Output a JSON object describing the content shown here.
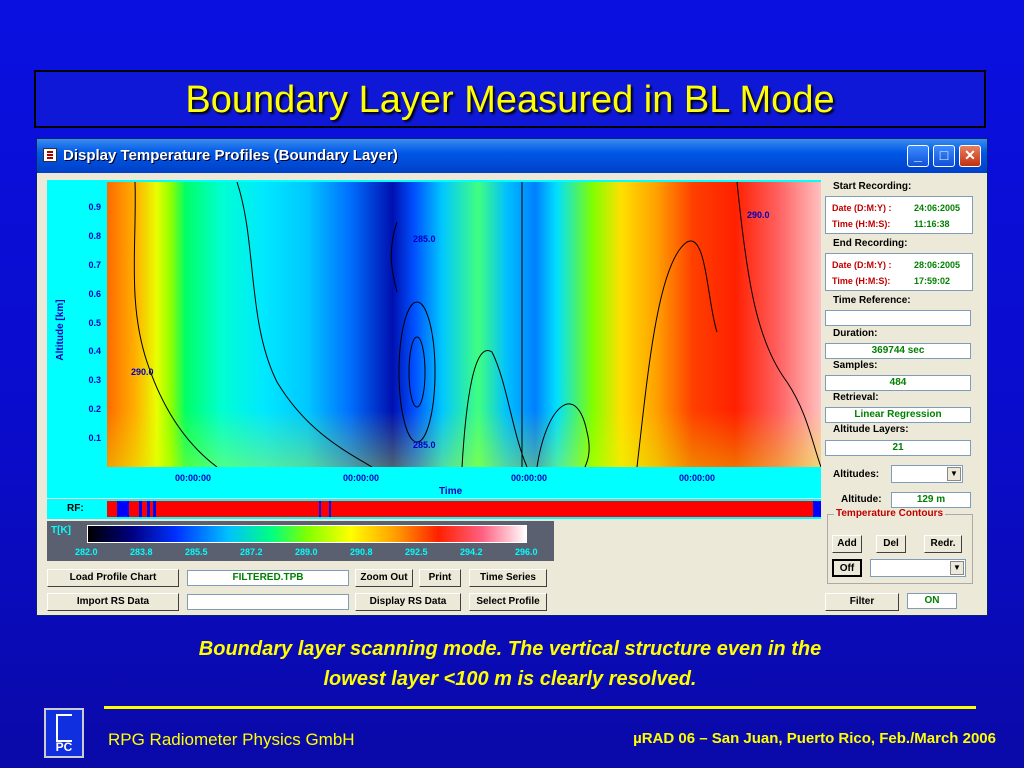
{
  "slide": {
    "title": "Boundary Layer Measured in BL Mode",
    "caption_line1": "Boundary layer scanning mode. The vertical structure even in the",
    "caption_line2": "lowest layer <100 m is clearly resolved.",
    "footer_left": "RPG Radiometer Physics GmbH",
    "footer_right": "µRAD 06  – San Juan, Puerto Rico,  Feb./March  2006",
    "logo_text": "PC"
  },
  "window": {
    "title": "Display Temperature Profiles (Boundary Layer)",
    "min_label": "_",
    "max_label": "□",
    "close_label": "✕"
  },
  "plot": {
    "ylabel": "Altitude [km]",
    "yticks": [
      "0.9",
      "0.8",
      "0.7",
      "0.6",
      "0.5",
      "0.4",
      "0.3",
      "0.2",
      "0.1"
    ],
    "xticks": [
      "00:00:00",
      "00:00:00",
      "00:00:00",
      "00:00:00"
    ],
    "xlabel": "Time",
    "contour_labels": [
      "285.0",
      "290.0",
      "285.0",
      "290.0"
    ],
    "rf_label": "RF:"
  },
  "legend": {
    "title": "T[K]",
    "ticks": [
      "282.0",
      "283.8",
      "285.5",
      "287.2",
      "289.0",
      "290.8",
      "292.5",
      "294.2",
      "296.0"
    ]
  },
  "controls": {
    "load_profile_chart": "Load Profile Chart",
    "filename": "FILTERED.TPB",
    "zoom_out": "Zoom Out",
    "print": "Print",
    "time_series": "Time Series",
    "import_rs_data": "Import RS Data",
    "rs_field": "",
    "display_rs_data": "Display RS Data",
    "select_profile": "Select Profile"
  },
  "sidebar": {
    "start_recording": "Start Recording:",
    "start_date_key": "Date (D:M:Y) :",
    "start_date_val": "24:06:2005",
    "start_time_key": "Time (H:M:S):",
    "start_time_val": "11:16:38",
    "end_recording": "End Recording:",
    "end_date_key": "Date (D:M:Y) :",
    "end_date_val": "28:06:2005",
    "end_time_key": "Time (H:M:S):",
    "end_time_val": "17:59:02",
    "time_reference": "Time Reference:",
    "time_reference_val": "",
    "duration": "Duration:",
    "duration_val": "369744 sec",
    "samples": "Samples:",
    "samples_val": "484",
    "retrieval": "Retrieval:",
    "retrieval_val": "Linear Regression",
    "altitude_layers": "Altitude Layers:",
    "altitude_layers_val": "21",
    "altitudes": "Altitudes:",
    "altitude": "Altitude:",
    "altitude_val": "129 m",
    "contours_title": "Temperature Contours",
    "add": "Add",
    "del": "Del",
    "redr": "Redr.",
    "off": "Off",
    "filter": "Filter",
    "filter_state": "ON"
  },
  "colors": {
    "background": "#0a10e0",
    "title_text": "#ffff00",
    "window_titlebar": "#0058e6",
    "axis_text": "#0000c0",
    "rf_bar": "#ff0000"
  }
}
